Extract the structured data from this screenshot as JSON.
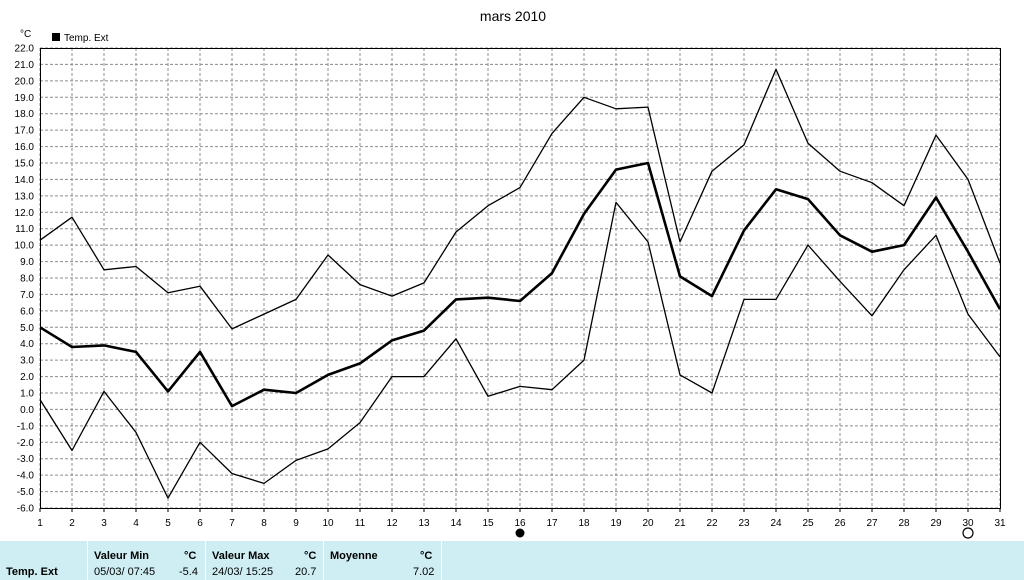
{
  "chart_data": {
    "type": "line",
    "title": "mars 2010",
    "unit_label": "°C",
    "legend": [
      "Temp. Ext"
    ],
    "legend_position": "top-left",
    "grid": true,
    "x": [
      1,
      2,
      3,
      4,
      5,
      6,
      7,
      8,
      9,
      10,
      11,
      12,
      13,
      14,
      15,
      16,
      17,
      18,
      19,
      20,
      21,
      22,
      23,
      24,
      25,
      26,
      27,
      28,
      29,
      30,
      31
    ],
    "xlim": [
      1,
      31
    ],
    "ylim": [
      -6,
      22
    ],
    "yticks": [
      "-6.0",
      "-5.0",
      "-4.0",
      "-3.0",
      "-2.0",
      "-1.0",
      "0.0",
      "1.0",
      "2.0",
      "3.0",
      "4.0",
      "5.0",
      "6.0",
      "7.0",
      "8.0",
      "9.0",
      "10.0",
      "11.0",
      "12.0",
      "13.0",
      "14.0",
      "15.0",
      "16.0",
      "17.0",
      "18.0",
      "19.0",
      "20.0",
      "21.0",
      "22.0"
    ],
    "series": [
      {
        "name": "Temp. Ext",
        "role": "max",
        "width": 1.3,
        "values": [
          10.3,
          11.7,
          8.5,
          8.7,
          7.1,
          7.5,
          4.9,
          5.8,
          6.7,
          9.4,
          7.6,
          6.9,
          7.7,
          10.8,
          12.4,
          13.5,
          16.8,
          19.0,
          18.3,
          18.4,
          10.2,
          14.5,
          16.1,
          20.7,
          16.2,
          14.5,
          13.8,
          12.4,
          16.7,
          14.0,
          8.9
        ]
      },
      {
        "name": "Temp. Ext",
        "role": "mean",
        "width": 2.6,
        "values": [
          5.0,
          3.8,
          3.9,
          3.5,
          1.1,
          3.5,
          0.2,
          1.2,
          1.0,
          2.1,
          2.8,
          4.2,
          4.8,
          6.7,
          6.8,
          6.6,
          8.3,
          11.9,
          14.6,
          15.0,
          8.1,
          6.9,
          10.9,
          13.4,
          12.8,
          10.6,
          9.6,
          10.0,
          12.9,
          9.6,
          6.1
        ]
      },
      {
        "name": "Temp. Ext",
        "role": "min",
        "width": 1.3,
        "values": [
          0.6,
          -2.5,
          1.1,
          -1.4,
          -5.4,
          -2.0,
          -3.9,
          -4.5,
          -3.1,
          -2.4,
          -0.8,
          2.0,
          2.0,
          4.3,
          0.8,
          1.4,
          1.2,
          3.0,
          12.6,
          10.2,
          2.1,
          1.0,
          6.7,
          6.7,
          10.0,
          7.8,
          5.7,
          8.5,
          10.6,
          5.8,
          3.2
        ]
      }
    ],
    "markers": [
      {
        "x": 16,
        "symbol": "filled-circle"
      },
      {
        "x": 30,
        "symbol": "open-circle"
      }
    ]
  },
  "summary": {
    "row_label": "Temp. Ext",
    "min_header": "Valeur Min",
    "max_header": "Valeur Max",
    "mean_header": "Moyenne",
    "unit": "°C",
    "min_when": "05/03/  07:45",
    "min_value": "-5.4",
    "max_when": "24/03/  15:25",
    "max_value": "20.7",
    "mean_value": "7.02"
  },
  "colors": {
    "panel_bg": "#cfeef3",
    "line": "#000000",
    "grid": "#8c8c8c"
  }
}
